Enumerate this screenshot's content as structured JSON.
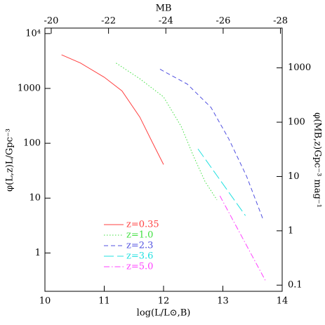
{
  "chart_data": {
    "type": "line",
    "log_y": true,
    "x_label": "log(L/L⊙,B)",
    "y_label": "φ(L,z)L/Gpc⁻³",
    "x2_label": "MB",
    "y2_label": "φ(MB,z)Gpc⁻³ mag⁻¹",
    "xlim": [
      10,
      14
    ],
    "xticks": [
      10,
      11,
      12,
      13,
      14
    ],
    "ylim": [
      0.2,
      12600
    ],
    "yticks": [
      1,
      10,
      100,
      1000,
      {
        "value": 10000,
        "label": "10⁴"
      }
    ],
    "x2lim": [
      -19.78,
      -28.06
    ],
    "x2ticks": [
      -20,
      -22,
      -24,
      -26,
      -28
    ],
    "y2lim": [
      0.077,
      5400
    ],
    "y2ticks": [
      0.1,
      1,
      10,
      100,
      1000
    ],
    "legend": "lower center",
    "series": [
      {
        "name": "z=0.35",
        "color": "#ff4040",
        "dash": "solid",
        "x": [
          10.28,
          10.6,
          11.0,
          11.3,
          11.6,
          11.8,
          12.0
        ],
        "values": [
          4100,
          2900,
          1600,
          900,
          300,
          110,
          41
        ]
      },
      {
        "name": "z=1.0",
        "color": "#40e040",
        "dash": "dotted",
        "x": [
          11.2,
          11.6,
          12.0,
          12.3,
          12.5,
          12.7,
          12.9
        ],
        "values": [
          2900,
          1500,
          700,
          200,
          60,
          20,
          9.3
        ]
      },
      {
        "name": "z=2.3",
        "color": "#5050e0",
        "dash": "dashed",
        "x": [
          11.94,
          12.4,
          12.8,
          13.1,
          13.4,
          13.67
        ],
        "values": [
          2240,
          1200,
          450,
          120,
          25,
          4.3
        ]
      },
      {
        "name": "z=3.6",
        "color": "#20e0e0",
        "dash": "longdash",
        "x": [
          12.58,
          13.38
        ],
        "values": [
          79,
          4.8
        ]
      },
      {
        "name": "z=5.0",
        "color": "#ff40ff",
        "dash": "dashdot",
        "x": [
          12.95,
          13.72
        ],
        "values": [
          11,
          0.31
        ]
      }
    ]
  }
}
